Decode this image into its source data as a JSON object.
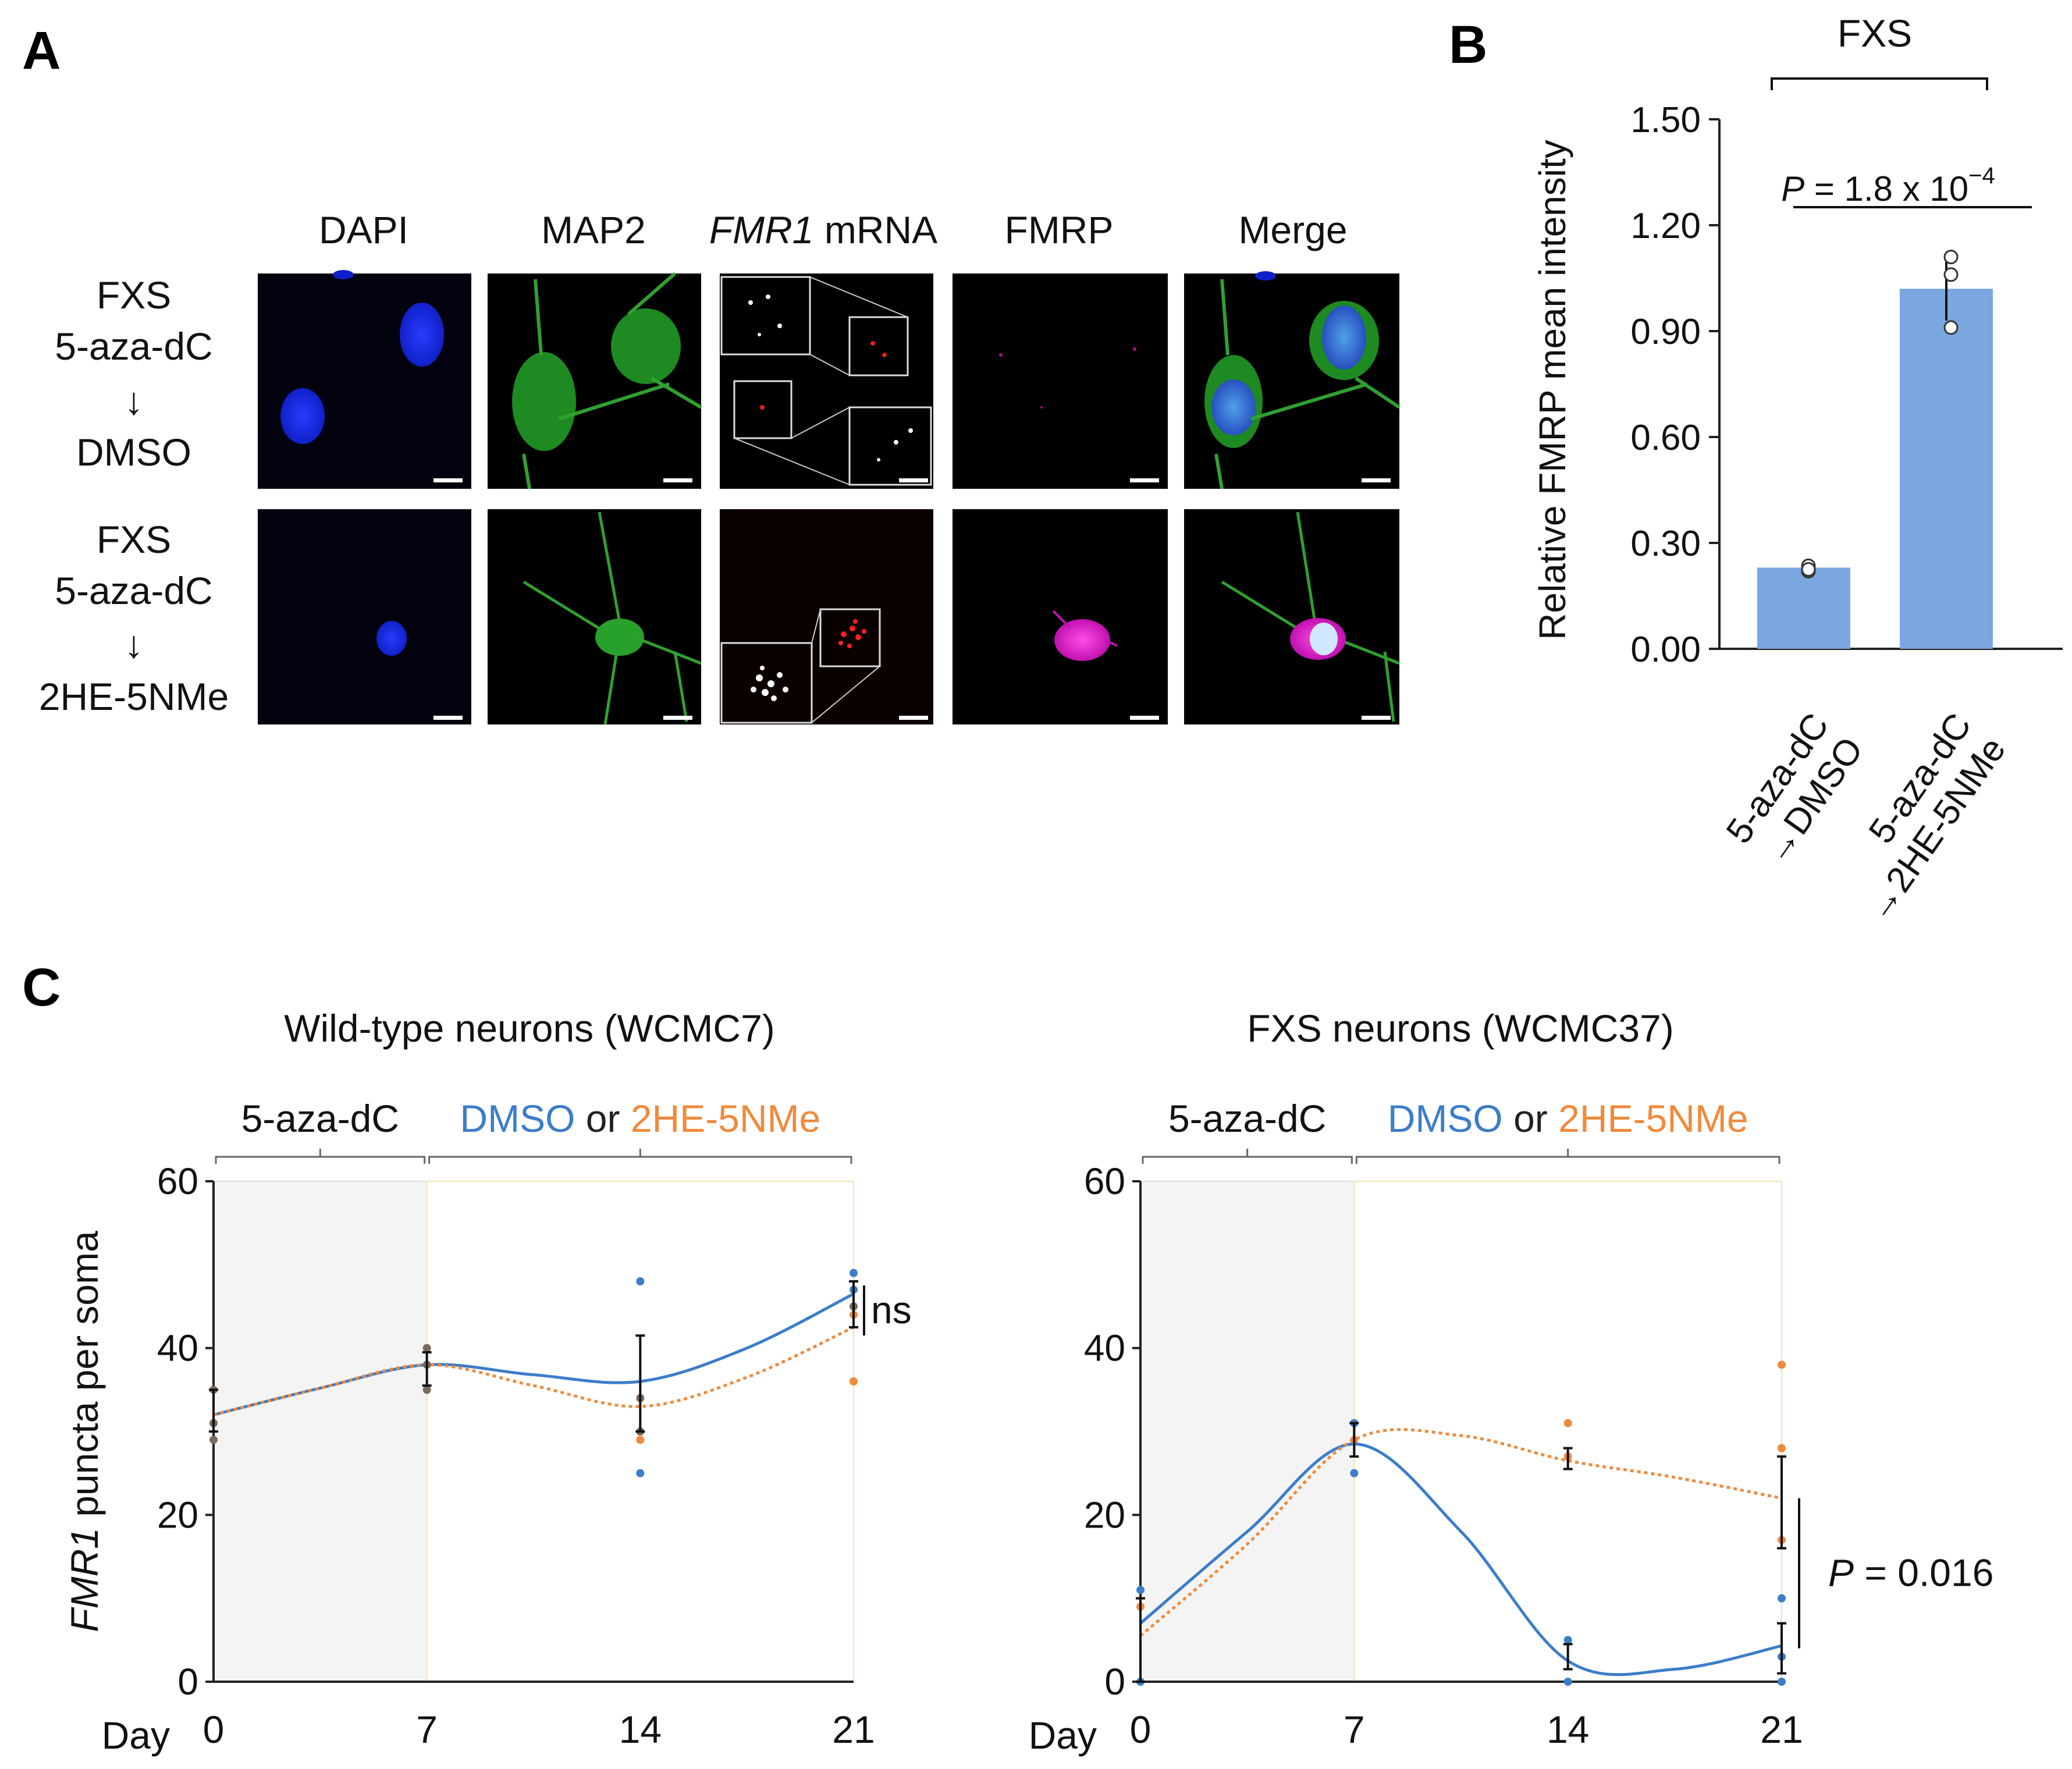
{
  "panel_labels": [
    "A",
    "B",
    "C"
  ],
  "panel_a": {
    "column_headers": [
      {
        "text": "DAPI",
        "color": "#1a2bb8"
      },
      {
        "text": "MAP2",
        "color": "#1b8a3a"
      },
      {
        "italic": "FMR1",
        "text": " mRNA",
        "color": "#d01c1c"
      },
      {
        "text": "FMRP",
        "color": "#b8189a"
      },
      {
        "text": "Merge",
        "color": "#111111"
      }
    ],
    "rows": [
      {
        "lines": [
          "FXS",
          "5-aza-dC",
          "↓",
          "DMSO"
        ]
      },
      {
        "lines": [
          "FXS",
          "5-aza-dC",
          "↓",
          "2HE-5NMe"
        ]
      }
    ]
  },
  "chart_data": [
    {
      "panel": "B",
      "type": "bar",
      "title": "FXS",
      "ylabel": "Relative FMRP mean intensity",
      "ylim": [
        0,
        1.5
      ],
      "yticks": [
        "1.50",
        "1.20",
        "0.90",
        "0.60",
        "0.30",
        "0.00"
      ],
      "categories": [
        [
          "5-aza-dC",
          "→DMSO"
        ],
        [
          "5-aza-dC",
          "→2HE-5NMe"
        ]
      ],
      "values": [
        0.23,
        1.02
      ],
      "errors": [
        0.01,
        0.09
      ],
      "points": [
        [
          0.22,
          0.235,
          0.225
        ],
        [
          0.91,
          1.06,
          1.11
        ]
      ],
      "bar_color": "#7ba7e0",
      "annotation": {
        "p": "P",
        "text": " = 1.8 x 10",
        "exp": "−4"
      }
    },
    {
      "panel": "C-left",
      "type": "line",
      "title": "Wild-type neurons (WCMC7)",
      "phase_labels": [
        {
          "text": "5-aza-dC",
          "color": "#222222"
        },
        {
          "text": "DMSO",
          "color": "#3b7dc9"
        },
        {
          "text": " or ",
          "color": "#222222"
        },
        {
          "text": "2HE-5NMe",
          "color": "#f08a3c"
        }
      ],
      "ylabel_italic": "FMR1",
      "ylabel": " puncta per soma",
      "xlabel": "Day",
      "x": [
        0,
        7,
        14,
        21
      ],
      "ylim": [
        0,
        60
      ],
      "yticks": [
        0,
        20,
        40,
        60
      ],
      "shaded_x": [
        0,
        7
      ],
      "series": [
        {
          "name": "DMSO",
          "color": "#3b7dc9",
          "values": [
            32,
            38,
            36,
            46.5
          ],
          "curve_mid": [
            [
              3.5,
              35.2
            ],
            [
              10.5,
              36.8
            ],
            [
              17.5,
              40
            ]
          ]
        },
        {
          "name": "2HE-5NMe",
          "color": "#f08a3c",
          "values": [
            32,
            38,
            33,
            42.5
          ],
          "curve_mid": [
            [
              3.5,
              35.2
            ],
            [
              10.5,
              35.5
            ],
            [
              17.5,
              36.5
            ]
          ]
        }
      ],
      "points": {
        "DMSO": [
          [
            14,
            48
          ],
          [
            14,
            25
          ],
          [
            21,
            49
          ],
          [
            21,
            47
          ]
        ],
        "2HE-5NMe": [
          [
            14,
            29
          ],
          [
            21,
            36
          ],
          [
            21,
            44
          ]
        ],
        "shared": [
          [
            0,
            35
          ],
          [
            0,
            29
          ],
          [
            0,
            31
          ],
          [
            7,
            40
          ],
          [
            7,
            38
          ],
          [
            7,
            35
          ],
          [
            14,
            34
          ],
          [
            14,
            30
          ],
          [
            21,
            45
          ]
        ]
      },
      "errorbars": [
        [
          0,
          30,
          35
        ],
        [
          7,
          35.5,
          39.5
        ],
        [
          14,
          30,
          41.5
        ],
        [
          21,
          42.5,
          48
        ]
      ],
      "annotation": "ns"
    },
    {
      "panel": "C-right",
      "type": "line",
      "title": "FXS neurons (WCMC37)",
      "phase_labels": [
        {
          "text": "5-aza-dC",
          "color": "#222222"
        },
        {
          "text": "DMSO",
          "color": "#3b7dc9"
        },
        {
          "text": " or ",
          "color": "#222222"
        },
        {
          "text": "2HE-5NMe",
          "color": "#f08a3c"
        }
      ],
      "xlabel": "Day",
      "x": [
        0,
        7,
        14,
        21
      ],
      "ylim": [
        0,
        60
      ],
      "yticks": [
        0,
        20,
        40,
        60
      ],
      "shaded_x": [
        0,
        7
      ],
      "series": [
        {
          "name": "DMSO",
          "color": "#3b7dc9",
          "values": [
            7,
            28.5,
            2.5,
            4.3
          ],
          "curve_mid": [
            [
              3.5,
              18
            ],
            [
              10.5,
              18
            ],
            [
              17.5,
              1.5
            ]
          ]
        },
        {
          "name": "2HE-5NMe",
          "color": "#f08a3c",
          "values": [
            5.5,
            29,
            26.5,
            22
          ],
          "curve_mid": [
            [
              3.5,
              16.5
            ],
            [
              10.5,
              29.5
            ],
            [
              17.5,
              24.5
            ]
          ]
        }
      ],
      "points": {
        "DMSO": [
          [
            0,
            11
          ],
          [
            0,
            0
          ],
          [
            7,
            31
          ],
          [
            7,
            25
          ],
          [
            14,
            5
          ],
          [
            14,
            0
          ],
          [
            21,
            10
          ],
          [
            21,
            0
          ],
          [
            21,
            3
          ]
        ],
        "2HE-5NMe": [
          [
            0,
            9
          ],
          [
            7,
            29
          ],
          [
            14,
            31
          ],
          [
            14,
            27
          ],
          [
            21,
            38
          ],
          [
            21,
            28
          ],
          [
            21,
            17
          ]
        ]
      },
      "errorbars": [
        [
          0,
          0,
          10
        ],
        [
          7,
          27,
          31
        ],
        [
          14,
          25.5,
          28
        ],
        [
          21,
          16,
          27
        ],
        [
          21,
          1,
          7
        ],
        [
          14,
          1.5,
          4.5
        ]
      ],
      "annotation": {
        "p": "P",
        "text": " = 0.016"
      }
    }
  ]
}
